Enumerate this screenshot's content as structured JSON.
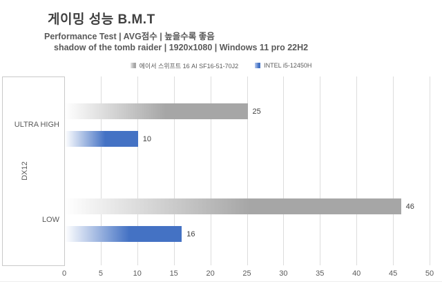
{
  "header": {
    "title": "게이밍 성능 B.M.T",
    "subtitle1": "Performance Test | AVG점수 | 높을수록 좋음",
    "subtitle2": "shadow of the tomb raider | 1920x1080 | Windows 11 pro 22H2"
  },
  "colors": {
    "series_gray": "#a6a6a6",
    "series_blue": "#4472c4",
    "gridline": "#dcdcdc",
    "axis_box": "#c9c9c9",
    "text_dark": "#404040",
    "text_muted": "#595959"
  },
  "chart_data": {
    "type": "bar",
    "orientation": "horizontal",
    "title": "게이밍 성능 B.M.T",
    "subtitle": "Performance Test | AVG점수 | 높을수록 좋음 | shadow of the tomb raider | 1920x1080 | Windows 11 pro 22H2",
    "group_label": "DX12",
    "categories": [
      "ULTRA HIGH",
      "LOW"
    ],
    "series": [
      {
        "name": "에이서 스위프트 16 AI SF16-51-70J2",
        "color": "#a6a6a6",
        "values": [
          25,
          46
        ]
      },
      {
        "name": "INTEL i5-12450H",
        "color": "#4472c4",
        "values": [
          10,
          16
        ]
      }
    ],
    "xlim": [
      0,
      50
    ],
    "x_ticks": [
      0,
      5,
      10,
      15,
      20,
      25,
      30,
      35,
      40,
      45,
      50
    ],
    "grid": true,
    "legend_position": "top",
    "value_labels": true,
    "bar_fill": "white-to-color horizontal gradient"
  }
}
